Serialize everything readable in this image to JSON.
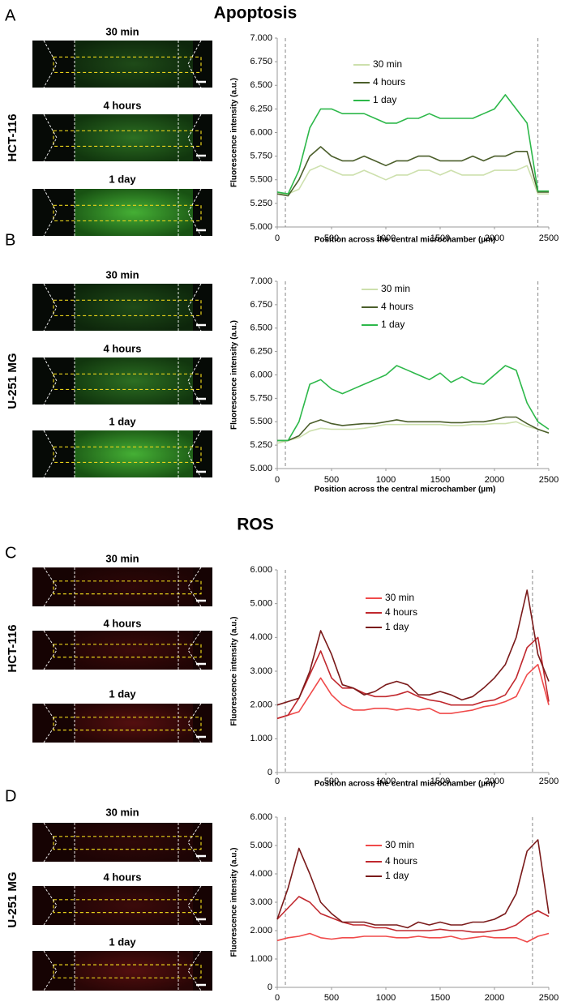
{
  "figure": {
    "sections": [
      {
        "title": "Apoptosis"
      },
      {
        "title": "ROS"
      }
    ]
  },
  "chart_data": [
    {
      "type": "line",
      "panel": "A",
      "row_label": "HCT-116",
      "image_labels": [
        "30 min",
        "4 hours",
        "1 day"
      ],
      "xlabel": "Position across the central microchamber (µm)",
      "ylabel": "Fluorescence intensity (a.u.)",
      "x": [
        0,
        100,
        200,
        300,
        400,
        500,
        600,
        700,
        800,
        900,
        1000,
        1100,
        1200,
        1300,
        1400,
        1500,
        1600,
        1700,
        1800,
        1900,
        2000,
        2100,
        2200,
        2300,
        2400,
        2500
      ],
      "series": [
        {
          "name": "30 min",
          "color": "#cde0ad",
          "values": [
            5.35,
            5.35,
            5.4,
            5.6,
            5.65,
            5.6,
            5.55,
            5.55,
            5.6,
            5.55,
            5.5,
            5.55,
            5.55,
            5.6,
            5.6,
            5.55,
            5.6,
            5.55,
            5.55,
            5.55,
            5.6,
            5.6,
            5.6,
            5.65,
            5.35,
            5.35
          ]
        },
        {
          "name": "4 hours",
          "color": "#4b5e2b",
          "values": [
            5.35,
            5.33,
            5.5,
            5.75,
            5.85,
            5.75,
            5.7,
            5.7,
            5.75,
            5.7,
            5.65,
            5.7,
            5.7,
            5.75,
            5.75,
            5.7,
            5.7,
            5.7,
            5.75,
            5.7,
            5.75,
            5.75,
            5.8,
            5.8,
            5.37,
            5.37
          ]
        },
        {
          "name": "1 day",
          "color": "#2db84a",
          "values": [
            5.37,
            5.35,
            5.6,
            6.05,
            6.25,
            6.25,
            6.2,
            6.2,
            6.2,
            6.15,
            6.1,
            6.1,
            6.15,
            6.15,
            6.2,
            6.15,
            6.15,
            6.15,
            6.15,
            6.2,
            6.25,
            6.4,
            6.25,
            6.1,
            5.38,
            5.38
          ]
        }
      ],
      "xlim": [
        0,
        2500
      ],
      "xticks": [
        0,
        500,
        1000,
        1500,
        2000,
        2500
      ],
      "ylim": [
        5,
        7
      ],
      "yticks": [
        {
          "value": 5,
          "label": "5.000"
        },
        {
          "value": 5.25,
          "label": "5.250"
        },
        {
          "value": 5.5,
          "label": "5.500"
        },
        {
          "value": 5.75,
          "label": "5.750"
        },
        {
          "value": 6,
          "label": "6.000"
        },
        {
          "value": 6.25,
          "label": "6.250"
        },
        {
          "value": 6.5,
          "label": "6.500"
        },
        {
          "value": 6.75,
          "label": "6.750"
        },
        {
          "value": 7,
          "label": "7.000"
        }
      ],
      "vlines": [
        75,
        2400
      ],
      "legend": "upper center",
      "grid": false
    },
    {
      "type": "line",
      "panel": "B",
      "row_label": "U-251 MG",
      "image_labels": [
        "30 min",
        "4 hours",
        "1 day"
      ],
      "xlabel": "Position across the central microchamber (µm)",
      "ylabel": "Fluorescence intensity (a.u.)",
      "x": [
        0,
        100,
        200,
        300,
        400,
        500,
        600,
        700,
        800,
        900,
        1000,
        1100,
        1200,
        1300,
        1400,
        1500,
        1600,
        1700,
        1800,
        1900,
        2000,
        2100,
        2200,
        2300,
        2400,
        2500
      ],
      "series": [
        {
          "name": "30 min",
          "color": "#cde0ad",
          "values": [
            5.27,
            5.3,
            5.33,
            5.4,
            5.43,
            5.42,
            5.42,
            5.42,
            5.43,
            5.45,
            5.47,
            5.47,
            5.47,
            5.47,
            5.47,
            5.47,
            5.46,
            5.46,
            5.47,
            5.47,
            5.48,
            5.48,
            5.5,
            5.45,
            5.42,
            5.38
          ]
        },
        {
          "name": "4 hours",
          "color": "#4b5e2b",
          "values": [
            5.3,
            5.3,
            5.35,
            5.48,
            5.52,
            5.48,
            5.46,
            5.47,
            5.48,
            5.48,
            5.5,
            5.52,
            5.5,
            5.5,
            5.5,
            5.5,
            5.49,
            5.49,
            5.5,
            5.5,
            5.52,
            5.55,
            5.55,
            5.48,
            5.42,
            5.38
          ]
        },
        {
          "name": "1 day",
          "color": "#2db84a",
          "values": [
            5.3,
            5.3,
            5.5,
            5.9,
            5.95,
            5.85,
            5.8,
            5.85,
            5.9,
            5.95,
            6.0,
            6.1,
            6.05,
            6.0,
            5.95,
            6.02,
            5.92,
            5.98,
            5.92,
            5.9,
            6.0,
            6.1,
            6.05,
            5.7,
            5.5,
            5.42
          ]
        }
      ],
      "xlim": [
        0,
        2500
      ],
      "xticks": [
        0,
        500,
        1000,
        1500,
        2000,
        2500
      ],
      "ylim": [
        5,
        7
      ],
      "yticks": [
        {
          "value": 5,
          "label": "5.000"
        },
        {
          "value": 5.25,
          "label": "5.250"
        },
        {
          "value": 5.5,
          "label": "5.500"
        },
        {
          "value": 5.75,
          "label": "5.750"
        },
        {
          "value": 6,
          "label": "6.000"
        },
        {
          "value": 6.25,
          "label": "6.250"
        },
        {
          "value": 6.5,
          "label": "6.500"
        },
        {
          "value": 6.75,
          "label": "6.750"
        },
        {
          "value": 7,
          "label": "7.000"
        }
      ],
      "vlines": [
        75,
        2400
      ],
      "legend": "upper center",
      "grid": false
    },
    {
      "type": "line",
      "panel": "C",
      "row_label": "HCT-116",
      "image_labels": [
        "30 min",
        "4 hours",
        "1 day"
      ],
      "xlabel": "Position across the central microchamber (µm)",
      "ylabel": "Fluorescence intensity (a.u.)",
      "x": [
        0,
        100,
        200,
        300,
        400,
        500,
        600,
        700,
        800,
        900,
        1000,
        1100,
        1200,
        1300,
        1400,
        1500,
        1600,
        1700,
        1800,
        1900,
        2000,
        2100,
        2200,
        2300,
        2400,
        2500
      ],
      "series": [
        {
          "name": "30 min",
          "color": "#f04a4a",
          "values": [
            1.6,
            1.7,
            1.8,
            2.3,
            2.8,
            2.3,
            2.0,
            1.85,
            1.85,
            1.9,
            1.9,
            1.85,
            1.9,
            1.85,
            1.9,
            1.75,
            1.75,
            1.8,
            1.85,
            1.95,
            2.0,
            2.1,
            2.25,
            2.9,
            3.2,
            2.0
          ]
        },
        {
          "name": "4 hours",
          "color": "#c0282e",
          "values": [
            1.6,
            1.7,
            2.2,
            2.9,
            3.6,
            2.8,
            2.5,
            2.5,
            2.35,
            2.25,
            2.25,
            2.3,
            2.4,
            2.25,
            2.15,
            2.1,
            2.0,
            2.0,
            2.0,
            2.1,
            2.15,
            2.3,
            2.8,
            3.7,
            4.0,
            2.1
          ]
        },
        {
          "name": "1 day",
          "color": "#7a1a1a",
          "values": [
            2.0,
            2.1,
            2.2,
            3.0,
            4.2,
            3.5,
            2.6,
            2.5,
            2.3,
            2.4,
            2.6,
            2.7,
            2.6,
            2.3,
            2.3,
            2.4,
            2.3,
            2.15,
            2.25,
            2.5,
            2.8,
            3.2,
            4.0,
            5.4,
            3.5,
            2.7
          ]
        }
      ],
      "xlim": [
        0,
        2500
      ],
      "xticks": [
        0,
        500,
        1000,
        1500,
        2000,
        2500
      ],
      "ylim": [
        0,
        6
      ],
      "yticks": [
        0,
        {
          "value": 1,
          "label": "1.000"
        },
        {
          "value": 2,
          "label": "2.000"
        },
        {
          "value": 3,
          "label": "3.000"
        },
        {
          "value": 4,
          "label": "4.000"
        },
        {
          "value": 5,
          "label": "5.000"
        },
        {
          "value": 6,
          "label": "6.000"
        }
      ],
      "vlines": [
        75,
        2350
      ],
      "legend": "upper center",
      "grid": false
    },
    {
      "type": "line",
      "panel": "D",
      "row_label": "U-251 MG",
      "image_labels": [
        "30 min",
        "4 hours",
        "1 day"
      ],
      "ylabel": "Fluorescence intensity (a.u.)",
      "x": [
        0,
        100,
        200,
        300,
        400,
        500,
        600,
        700,
        800,
        900,
        1000,
        1100,
        1200,
        1300,
        1400,
        1500,
        1600,
        1700,
        1800,
        1900,
        2000,
        2100,
        2200,
        2300,
        2400,
        2500
      ],
      "series": [
        {
          "name": "30 min",
          "color": "#f04a4a",
          "values": [
            1.65,
            1.75,
            1.8,
            1.9,
            1.75,
            1.7,
            1.75,
            1.75,
            1.8,
            1.8,
            1.8,
            1.75,
            1.75,
            1.8,
            1.75,
            1.75,
            1.8,
            1.7,
            1.75,
            1.8,
            1.75,
            1.75,
            1.75,
            1.6,
            1.8,
            1.9
          ]
        },
        {
          "name": "4 hours",
          "color": "#c0282e",
          "values": [
            2.4,
            2.8,
            3.2,
            3.0,
            2.6,
            2.45,
            2.3,
            2.2,
            2.2,
            2.1,
            2.1,
            2.0,
            2.0,
            2.0,
            2.0,
            2.05,
            2.0,
            2.0,
            1.95,
            1.95,
            2.0,
            2.05,
            2.2,
            2.5,
            2.7,
            2.5
          ]
        },
        {
          "name": "1 day",
          "color": "#7a1a1a",
          "values": [
            2.4,
            3.5,
            4.9,
            4.0,
            3.0,
            2.6,
            2.3,
            2.3,
            2.3,
            2.2,
            2.2,
            2.2,
            2.1,
            2.3,
            2.2,
            2.3,
            2.2,
            2.2,
            2.3,
            2.3,
            2.4,
            2.6,
            3.3,
            4.8,
            5.2,
            2.6
          ]
        }
      ],
      "xlim": [
        0,
        2500
      ],
      "xticks": [
        0,
        500,
        1000,
        1500,
        2000,
        2500
      ],
      "ylim": [
        0,
        6
      ],
      "yticks": [
        0,
        {
          "value": 1,
          "label": "1.000"
        },
        {
          "value": 2,
          "label": "2.000"
        },
        {
          "value": 3,
          "label": "3.000"
        },
        {
          "value": 4,
          "label": "4.000"
        },
        {
          "value": 5,
          "label": "5.000"
        },
        {
          "value": 6,
          "label": "6.000"
        }
      ],
      "vlines": [
        75,
        2350
      ],
      "legend": "upper center",
      "grid": false
    }
  ]
}
